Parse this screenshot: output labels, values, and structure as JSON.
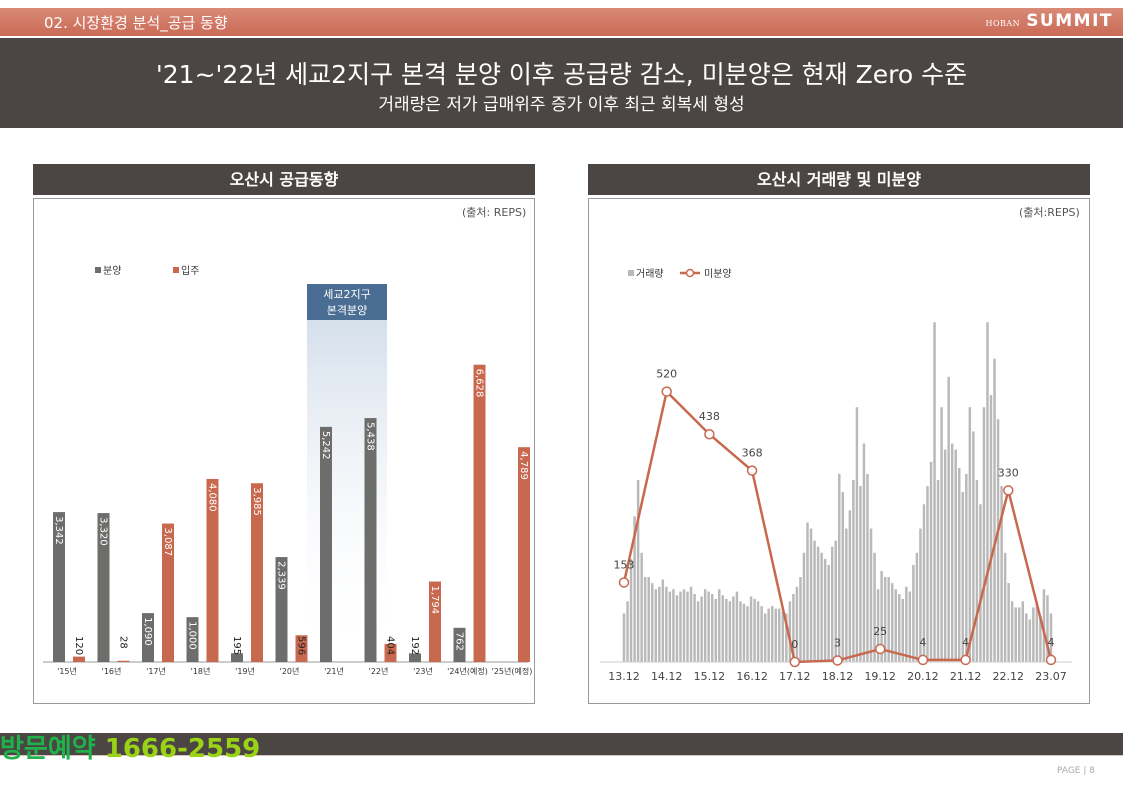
{
  "header": {
    "section_title": "02. 시장환경 분석_공급 동향",
    "brand_small": "HOBAN",
    "brand_large": "SUMMIT",
    "headline": "'21~'22년 세교2지구 본격 분양 이후 공급량 감소, 미분양은 현재 Zero 수준",
    "subline": "거래량은 저가 급매위주 증가 이후 최근 회복세 형성"
  },
  "left_panel": {
    "title": "오산시 공급동향",
    "source": "(출처: REPS)",
    "annotation": "세교2지구\n본격분양"
  },
  "right_panel": {
    "title": "오산시 거래량 및 미분양",
    "source": "(출처:REPS)"
  },
  "footer": {
    "visit_label": "방문예약",
    "phone": "1666-2559",
    "page_label": "PAGE",
    "page_number": "8"
  },
  "colors": {
    "dark": "#4b4644",
    "accent": "#c96a56",
    "bar_gray": "#6d6d6b",
    "bar_orange": "#c8694f",
    "volume_gray": "#b9b9b9",
    "annotation_blue": "#4a6d93"
  },
  "chart_data": [
    {
      "type": "bar",
      "categories": [
        "'15년",
        "'16년",
        "'17년",
        "'18년",
        "'19년",
        "'20년",
        "'21년",
        "'22년",
        "'23년",
        "'24년(예정)",
        "'25년(예정)"
      ],
      "series": [
        {
          "name": "분양",
          "values": [
            3342,
            3320,
            1090,
            1000,
            195,
            2339,
            5242,
            5438,
            192,
            762,
            null
          ]
        },
        {
          "name": "입주",
          "values": [
            120,
            28,
            3087,
            4080,
            3985,
            596,
            null,
            404,
            1794,
            6628,
            4789
          ]
        }
      ],
      "data_labels": {
        "분양": [
          "3,342",
          "3,320",
          "1,090",
          "1,000",
          "195",
          "2,339",
          "5,242",
          "5,438",
          "192",
          "762",
          ""
        ],
        "입주": [
          "120",
          "28",
          "3,087",
          "4,080",
          "3,985",
          "596",
          "",
          "404",
          "1,794",
          "6,628",
          "4,789"
        ]
      },
      "ylim": [
        0,
        7000
      ],
      "legend": "top-left",
      "grid": false
    },
    {
      "type": "line",
      "x_ticks": [
        "13.12",
        "14.12",
        "15.12",
        "16.12",
        "17.12",
        "18.12",
        "19.12",
        "20.12",
        "21.12",
        "22.12",
        "23.07"
      ],
      "series": [
        {
          "name": "거래량",
          "kind": "bar",
          "start": "2013-12",
          "end": "2023-07",
          "values": [
            40,
            50,
            85,
            120,
            150,
            90,
            70,
            70,
            65,
            60,
            62,
            68,
            62,
            58,
            60,
            55,
            58,
            60,
            58,
            62,
            56,
            50,
            54,
            60,
            58,
            56,
            52,
            60,
            55,
            52,
            50,
            54,
            58,
            50,
            48,
            46,
            54,
            52,
            50,
            46,
            40,
            44,
            46,
            44,
            44,
            42,
            40,
            50,
            56,
            62,
            70,
            90,
            115,
            110,
            100,
            95,
            90,
            85,
            80,
            95,
            100,
            155,
            140,
            110,
            125,
            150,
            210,
            145,
            180,
            155,
            110,
            90,
            60,
            75,
            70,
            70,
            65,
            60,
            56,
            52,
            62,
            58,
            80,
            90,
            110,
            130,
            145,
            165,
            280,
            150,
            210,
            175,
            235,
            180,
            175,
            160,
            140,
            155,
            210,
            190,
            150,
            130,
            210,
            280,
            220,
            250,
            200,
            145,
            90,
            65,
            50,
            45,
            45,
            50,
            40,
            35,
            45,
            50,
            38,
            60,
            55,
            40
          ],
          "ylim": [
            0,
            300
          ]
        },
        {
          "name": "미분양",
          "kind": "line",
          "values": [
            153,
            520,
            438,
            368,
            0,
            3,
            25,
            4,
            4,
            330,
            4
          ],
          "labels": [
            "153",
            "520",
            "438",
            "368",
            "0",
            "3",
            "25",
            "4",
            "4",
            "330",
            "4"
          ],
          "ylim": [
            0,
            700
          ]
        }
      ],
      "legend": "top-left",
      "grid": false
    }
  ]
}
